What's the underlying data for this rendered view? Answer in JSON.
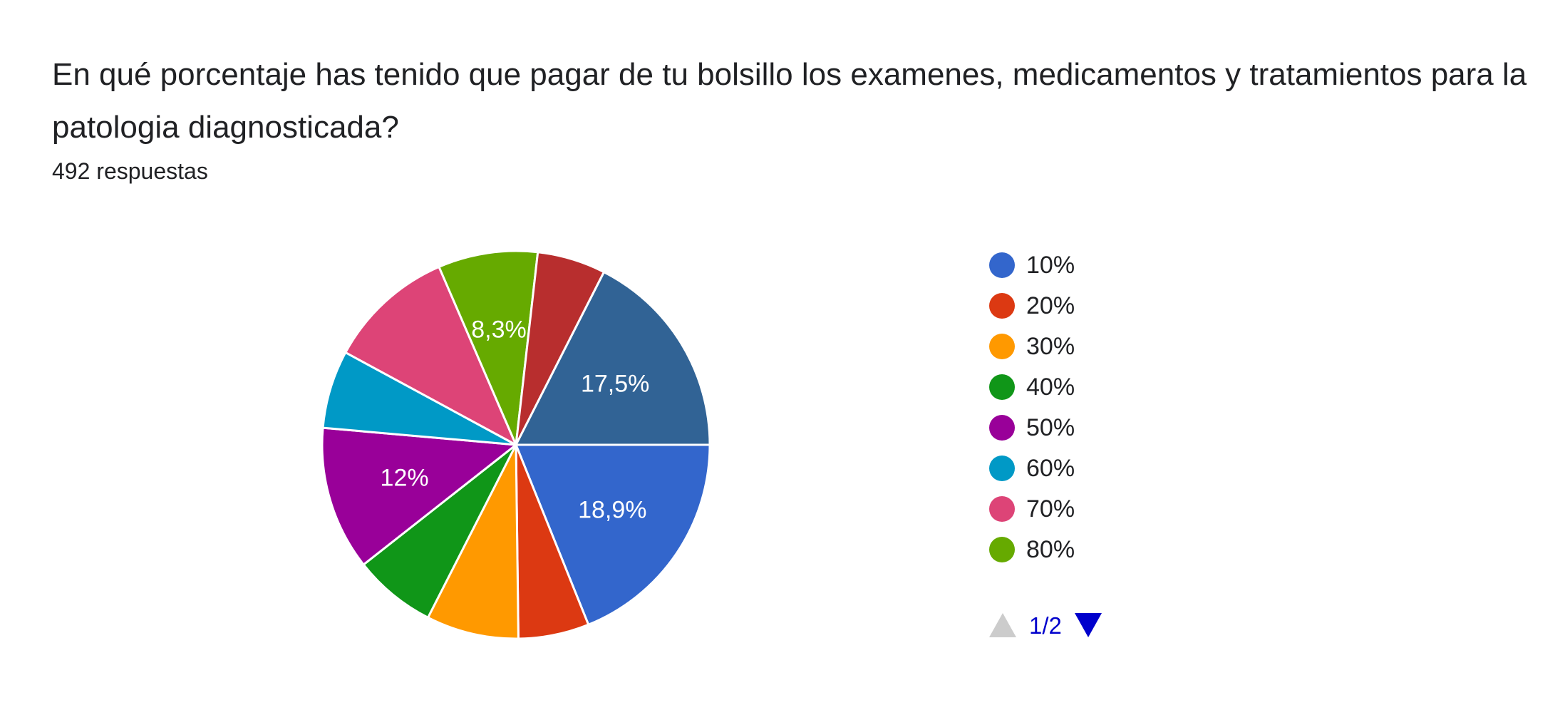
{
  "question": {
    "title": "En qué porcentaje has tenido que pagar de tu bolsillo los examenes, medicamentos y tratamientos para la patologia diagnosticada?",
    "responses": "492 respuestas"
  },
  "chart_data": {
    "type": "pie",
    "slices": [
      {
        "name": "10%",
        "value": 18.9,
        "color": "#3366cc",
        "label": "18,9%"
      },
      {
        "name": "20%",
        "value": 5.9,
        "color": "#dc3912",
        "label": ""
      },
      {
        "name": "30%",
        "value": 7.7,
        "color": "#ff9900",
        "label": ""
      },
      {
        "name": "40%",
        "value": 6.9,
        "color": "#109618",
        "label": ""
      },
      {
        "name": "50%",
        "value": 12.0,
        "color": "#990099",
        "label": "12%"
      },
      {
        "name": "60%",
        "value": 6.5,
        "color": "#0099c6",
        "label": ""
      },
      {
        "name": "70%",
        "value": 10.6,
        "color": "#dd4477",
        "label": ""
      },
      {
        "name": "80%",
        "value": 8.3,
        "color": "#66aa00",
        "label": "8,3%"
      },
      {
        "name": "",
        "value": 5.7,
        "color": "#b82e2e",
        "label": ""
      },
      {
        "name": "",
        "value": 17.5,
        "color": "#316395",
        "label": "17,5%"
      }
    ],
    "legend_position": "right"
  },
  "legend": {
    "items": [
      {
        "label": "10%",
        "color": "#3366cc"
      },
      {
        "label": "20%",
        "color": "#dc3912"
      },
      {
        "label": "30%",
        "color": "#ff9900"
      },
      {
        "label": "40%",
        "color": "#109618"
      },
      {
        "label": "50%",
        "color": "#990099"
      },
      {
        "label": "60%",
        "color": "#0099c6"
      },
      {
        "label": "70%",
        "color": "#dd4477"
      },
      {
        "label": "80%",
        "color": "#66aa00"
      }
    ],
    "pager": {
      "text": "1/2",
      "prev_icon": "triangle-up-icon",
      "next_icon": "triangle-down-icon",
      "prev_color": "#cccccc",
      "next_color": "#0000cc"
    }
  }
}
